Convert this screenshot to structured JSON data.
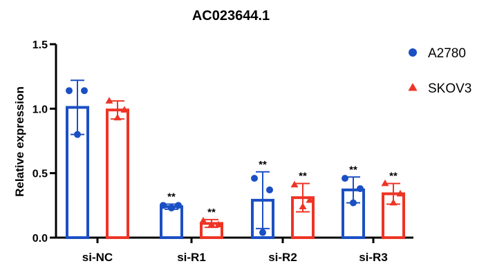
{
  "chart_data": {
    "type": "bar",
    "title": "AC023644.1",
    "xlabel": "",
    "ylabel": "Relative expression",
    "ylim": [
      0,
      1.5
    ],
    "yticks": [
      "0.0",
      "0.5",
      "1.0",
      "1.5"
    ],
    "categories": [
      "si-NC",
      "si-R1",
      "si-R2",
      "si-R3"
    ],
    "series": [
      {
        "name": "A2780",
        "color": "#1b4fc4",
        "marker": "circle",
        "values": [
          1.01,
          0.24,
          0.29,
          0.37
        ],
        "errors": [
          0.21,
          0.02,
          0.22,
          0.1
        ],
        "points": [
          [
            1.14,
            0.8,
            1.14
          ],
          [
            0.25,
            0.23,
            0.25
          ],
          [
            0.46,
            0.04,
            0.37
          ],
          [
            0.46,
            0.27,
            0.38
          ]
        ],
        "significance": [
          "",
          "**",
          "**",
          "**"
        ]
      },
      {
        "name": "SKOV3",
        "color": "#ee3425",
        "marker": "triangle",
        "values": [
          0.99,
          0.11,
          0.31,
          0.34
        ],
        "errors": [
          0.07,
          0.03,
          0.11,
          0.08
        ],
        "points": [
          [
            1.06,
            0.93,
            0.99
          ],
          [
            0.13,
            0.1,
            0.1
          ],
          [
            0.41,
            0.24,
            0.29
          ],
          [
            0.42,
            0.27,
            0.34
          ]
        ],
        "significance": [
          "",
          "**",
          "**",
          "**"
        ]
      }
    ],
    "legend": "right"
  }
}
